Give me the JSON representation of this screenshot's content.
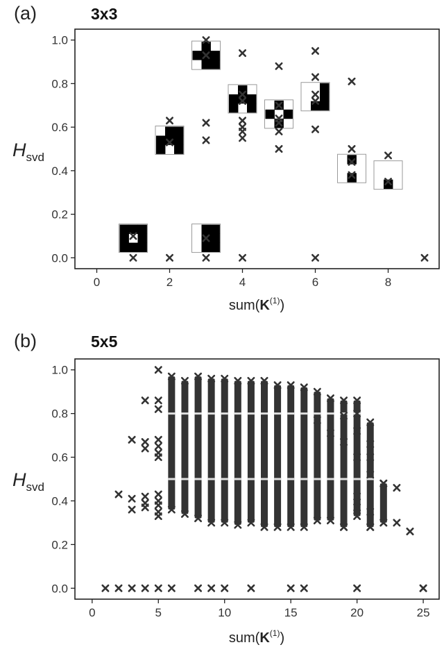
{
  "chart_data": [
    {
      "id": "a",
      "type": "scatter",
      "panel_label": "(a)",
      "title": "3x3",
      "ylabel_main": "H",
      "ylabel_sub": "svd",
      "xlabel_prefix": "sum(",
      "xlabel_bold": "K",
      "xlabel_sup": "(1)",
      "xlabel_suffix": ")",
      "xlim": [
        -0.6,
        9.4
      ],
      "ylim": [
        -0.05,
        1.05
      ],
      "xticks": [
        0,
        2,
        4,
        6,
        8
      ],
      "yticks": [
        0.0,
        0.2,
        0.4,
        0.6,
        0.8,
        1.0
      ],
      "marker": "x",
      "grid": false,
      "points": [
        [
          1,
          0.0
        ],
        [
          2,
          0.0
        ],
        [
          3,
          0.0
        ],
        [
          4,
          0.0
        ],
        [
          6,
          0.0
        ],
        [
          9,
          0.0
        ],
        [
          1,
          0.1
        ],
        [
          2,
          0.63
        ],
        [
          2,
          0.53
        ],
        [
          3,
          1.0
        ],
        [
          3,
          0.93
        ],
        [
          3,
          0.62
        ],
        [
          3,
          0.54
        ],
        [
          3,
          0.09
        ],
        [
          4,
          0.94
        ],
        [
          4,
          0.75
        ],
        [
          4,
          0.72
        ],
        [
          4,
          0.63
        ],
        [
          4,
          0.6
        ],
        [
          4,
          0.58
        ],
        [
          4,
          0.55
        ],
        [
          5,
          0.88
        ],
        [
          5,
          0.7
        ],
        [
          5,
          0.64
        ],
        [
          5,
          0.62
        ],
        [
          5,
          0.58
        ],
        [
          5,
          0.5
        ],
        [
          6,
          0.95
        ],
        [
          6,
          0.83
        ],
        [
          6,
          0.75
        ],
        [
          6,
          0.72
        ],
        [
          6,
          0.59
        ],
        [
          7,
          0.81
        ],
        [
          7,
          0.5
        ],
        [
          7,
          0.44
        ],
        [
          7,
          0.38
        ],
        [
          8,
          0.47
        ],
        [
          8,
          0.35
        ]
      ],
      "kernel_glyphs": [
        {
          "x": 1,
          "y": 0.09,
          "grid": [
            [
              1,
              1,
              1
            ],
            [
              1,
              0,
              1
            ],
            [
              1,
              1,
              1
            ]
          ]
        },
        {
          "x": 2,
          "y": 0.54,
          "grid": [
            [
              0,
              1,
              1
            ],
            [
              1,
              1,
              1
            ],
            [
              1,
              0,
              1
            ]
          ]
        },
        {
          "x": 3,
          "y": 0.09,
          "grid": [
            [
              0,
              1,
              1
            ],
            [
              0,
              1,
              1
            ],
            [
              0,
              1,
              1
            ]
          ]
        },
        {
          "x": 3,
          "y": 0.93,
          "grid": [
            [
              0,
              1,
              0
            ],
            [
              1,
              1,
              1
            ],
            [
              0,
              1,
              1
            ]
          ]
        },
        {
          "x": 4,
          "y": 0.73,
          "grid": [
            [
              0,
              1,
              0
            ],
            [
              1,
              1,
              1
            ],
            [
              1,
              0,
              1
            ]
          ]
        },
        {
          "x": 5,
          "y": 0.66,
          "grid": [
            [
              0,
              1,
              0
            ],
            [
              1,
              0,
              1
            ],
            [
              0,
              1,
              0
            ]
          ]
        },
        {
          "x": 6,
          "y": 0.74,
          "grid": [
            [
              0,
              0,
              1
            ],
            [
              0,
              0,
              1
            ],
            [
              0,
              1,
              1
            ]
          ]
        },
        {
          "x": 7,
          "y": 0.41,
          "grid": [
            [
              0,
              1,
              0
            ],
            [
              0,
              0,
              0
            ],
            [
              0,
              1,
              0
            ]
          ]
        },
        {
          "x": 8,
          "y": 0.38,
          "grid": [
            [
              0,
              0,
              0
            ],
            [
              0,
              0,
              0
            ],
            [
              0,
              1,
              0
            ]
          ]
        }
      ]
    },
    {
      "id": "b",
      "type": "scatter",
      "panel_label": "(b)",
      "title": "5x5",
      "ylabel_main": "H",
      "ylabel_sub": "svd",
      "xlabel_prefix": "sum(",
      "xlabel_bold": "K",
      "xlabel_sup": "(1)",
      "xlabel_suffix": ")",
      "xlim": [
        -1.3,
        26.2
      ],
      "ylim": [
        -0.05,
        1.05
      ],
      "xticks": [
        0,
        5,
        10,
        15,
        20,
        25
      ],
      "yticks": [
        0.0,
        0.2,
        0.4,
        0.6,
        0.8,
        1.0
      ],
      "marker": "x",
      "grid": false,
      "points": [
        [
          1,
          0.0
        ],
        [
          2,
          0.0
        ],
        [
          3,
          0.0
        ],
        [
          4,
          0.0
        ],
        [
          5,
          0.0
        ],
        [
          6,
          0.0
        ],
        [
          8,
          0.0
        ],
        [
          9,
          0.0
        ],
        [
          10,
          0.0
        ],
        [
          12,
          0.0
        ],
        [
          15,
          0.0
        ],
        [
          16,
          0.0
        ],
        [
          20,
          0.0
        ],
        [
          25,
          0.0
        ],
        [
          2,
          0.43
        ],
        [
          3,
          0.68
        ],
        [
          3,
          0.41
        ],
        [
          3,
          0.36
        ],
        [
          4,
          0.86
        ],
        [
          4,
          0.67
        ],
        [
          4,
          0.64
        ],
        [
          4,
          0.42
        ],
        [
          4,
          0.39
        ],
        [
          4,
          0.37
        ],
        [
          5,
          1.0
        ],
        [
          5,
          0.86
        ],
        [
          5,
          0.82
        ],
        [
          5,
          0.68
        ],
        [
          5,
          0.65
        ],
        [
          5,
          0.62
        ],
        [
          5,
          0.6
        ],
        [
          5,
          0.43
        ],
        [
          5,
          0.4
        ],
        [
          5,
          0.38
        ],
        [
          5,
          0.35
        ],
        [
          5,
          0.33
        ],
        [
          24,
          0.26
        ],
        [
          25,
          0.0
        ]
      ],
      "columns": [
        {
          "x": 6,
          "top": 0.97,
          "bottom": 0.36
        },
        {
          "x": 7,
          "top": 0.95,
          "bottom": 0.34
        },
        {
          "x": 8,
          "top": 0.97,
          "bottom": 0.32
        },
        {
          "x": 9,
          "top": 0.96,
          "bottom": 0.3
        },
        {
          "x": 10,
          "top": 0.96,
          "bottom": 0.3
        },
        {
          "x": 11,
          "top": 0.95,
          "bottom": 0.29
        },
        {
          "x": 12,
          "top": 0.95,
          "bottom": 0.3
        },
        {
          "x": 13,
          "top": 0.95,
          "bottom": 0.28
        },
        {
          "x": 14,
          "top": 0.93,
          "bottom": 0.28
        },
        {
          "x": 15,
          "top": 0.93,
          "bottom": 0.28
        },
        {
          "x": 16,
          "top": 0.92,
          "bottom": 0.28
        },
        {
          "x": 17,
          "top": 0.9,
          "bottom": 0.31
        },
        {
          "x": 18,
          "top": 0.87,
          "bottom": 0.31
        },
        {
          "x": 19,
          "top": 0.86,
          "bottom": 0.28
        },
        {
          "x": 20,
          "top": 0.86,
          "bottom": 0.33
        },
        {
          "x": 21,
          "top": 0.76,
          "bottom": 0.28
        },
        {
          "x": 22,
          "top": 0.48,
          "bottom": 0.3
        }
      ],
      "extra_points": [
        [
          19,
          0.28
        ],
        [
          20,
          0.37
        ],
        [
          20,
          0.42
        ],
        [
          21,
          0.35
        ],
        [
          21,
          0.28
        ],
        [
          22,
          0.48
        ],
        [
          22,
          0.3
        ],
        [
          23,
          0.46
        ],
        [
          23,
          0.3
        ],
        [
          19,
          0.79
        ],
        [
          20,
          0.8
        ],
        [
          20,
          0.72
        ],
        [
          21,
          0.66
        ],
        [
          21,
          0.6
        ],
        [
          21,
          0.52
        ],
        [
          20,
          0.6
        ],
        [
          19,
          0.67
        ],
        [
          18,
          0.71
        ],
        [
          17,
          0.77
        ]
      ]
    }
  ]
}
